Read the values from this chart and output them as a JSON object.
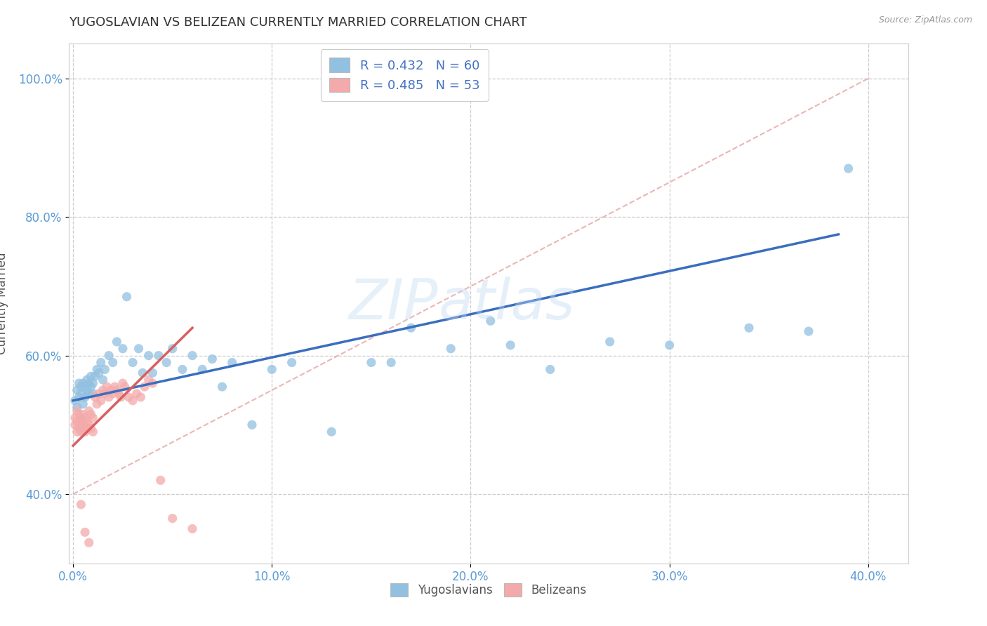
{
  "title": "YUGOSLAVIAN VS BELIZEAN CURRENTLY MARRIED CORRELATION CHART",
  "source_text": "Source: ZipAtlas.com",
  "ylabel": "Currently Married",
  "xlim": [
    -0.002,
    0.42
  ],
  "ylim": [
    0.3,
    1.05
  ],
  "ytick_labels": [
    "40.0%",
    "60.0%",
    "80.0%",
    "100.0%"
  ],
  "ytick_vals": [
    0.4,
    0.6,
    0.8,
    1.0
  ],
  "xtick_labels": [
    "0.0%",
    "10.0%",
    "20.0%",
    "30.0%",
    "40.0%"
  ],
  "xtick_vals": [
    0.0,
    0.1,
    0.2,
    0.3,
    0.4
  ],
  "legend_yug": "R = 0.432   N = 60",
  "legend_bel": "R = 0.485   N = 53",
  "yug_color": "#92C0E0",
  "bel_color": "#F4AAAA",
  "yug_line_color": "#3A6EBF",
  "bel_line_color": "#D95F5F",
  "diag_color": "#E8AAAA",
  "watermark_zip": "ZIP",
  "watermark_atlas": "atlas",
  "yug_scatter_x": [
    0.001,
    0.002,
    0.002,
    0.003,
    0.003,
    0.004,
    0.004,
    0.005,
    0.005,
    0.006,
    0.006,
    0.007,
    0.007,
    0.008,
    0.008,
    0.009,
    0.009,
    0.01,
    0.01,
    0.011,
    0.012,
    0.013,
    0.014,
    0.015,
    0.016,
    0.018,
    0.02,
    0.022,
    0.025,
    0.027,
    0.03,
    0.033,
    0.035,
    0.038,
    0.04,
    0.043,
    0.047,
    0.05,
    0.055,
    0.06,
    0.065,
    0.07,
    0.075,
    0.08,
    0.09,
    0.1,
    0.11,
    0.13,
    0.15,
    0.17,
    0.19,
    0.21,
    0.24,
    0.27,
    0.3,
    0.34,
    0.37,
    0.22,
    0.16,
    0.39
  ],
  "yug_scatter_y": [
    0.535,
    0.525,
    0.55,
    0.54,
    0.56,
    0.545,
    0.555,
    0.53,
    0.56,
    0.54,
    0.555,
    0.55,
    0.565,
    0.545,
    0.56,
    0.555,
    0.57,
    0.545,
    0.56,
    0.57,
    0.58,
    0.575,
    0.59,
    0.565,
    0.58,
    0.6,
    0.59,
    0.62,
    0.61,
    0.685,
    0.59,
    0.61,
    0.575,
    0.6,
    0.575,
    0.6,
    0.59,
    0.61,
    0.58,
    0.6,
    0.58,
    0.595,
    0.555,
    0.59,
    0.5,
    0.58,
    0.59,
    0.49,
    0.59,
    0.64,
    0.61,
    0.65,
    0.58,
    0.62,
    0.615,
    0.64,
    0.635,
    0.615,
    0.59,
    0.87
  ],
  "bel_scatter_x": [
    0.001,
    0.001,
    0.002,
    0.002,
    0.002,
    0.003,
    0.003,
    0.003,
    0.004,
    0.004,
    0.004,
    0.005,
    0.005,
    0.005,
    0.006,
    0.006,
    0.007,
    0.007,
    0.008,
    0.008,
    0.009,
    0.009,
    0.01,
    0.01,
    0.011,
    0.012,
    0.013,
    0.014,
    0.015,
    0.016,
    0.017,
    0.018,
    0.019,
    0.02,
    0.021,
    0.022,
    0.023,
    0.024,
    0.025,
    0.026,
    0.028,
    0.03,
    0.032,
    0.034,
    0.036,
    0.038,
    0.04,
    0.044,
    0.05,
    0.06,
    0.004,
    0.006,
    0.008
  ],
  "bel_scatter_y": [
    0.51,
    0.5,
    0.49,
    0.52,
    0.505,
    0.495,
    0.515,
    0.5,
    0.49,
    0.51,
    0.505,
    0.495,
    0.515,
    0.5,
    0.49,
    0.51,
    0.505,
    0.495,
    0.52,
    0.5,
    0.495,
    0.515,
    0.49,
    0.51,
    0.54,
    0.53,
    0.545,
    0.535,
    0.55,
    0.545,
    0.555,
    0.54,
    0.55,
    0.545,
    0.555,
    0.55,
    0.545,
    0.54,
    0.56,
    0.555,
    0.54,
    0.535,
    0.545,
    0.54,
    0.555,
    0.565,
    0.56,
    0.42,
    0.365,
    0.35,
    0.385,
    0.345,
    0.33
  ],
  "yug_trendline": [
    [
      0.0,
      0.385
    ],
    [
      0.535,
      0.775
    ]
  ],
  "bel_trendline": [
    [
      0.0,
      0.06
    ],
    [
      0.47,
      0.64
    ]
  ]
}
